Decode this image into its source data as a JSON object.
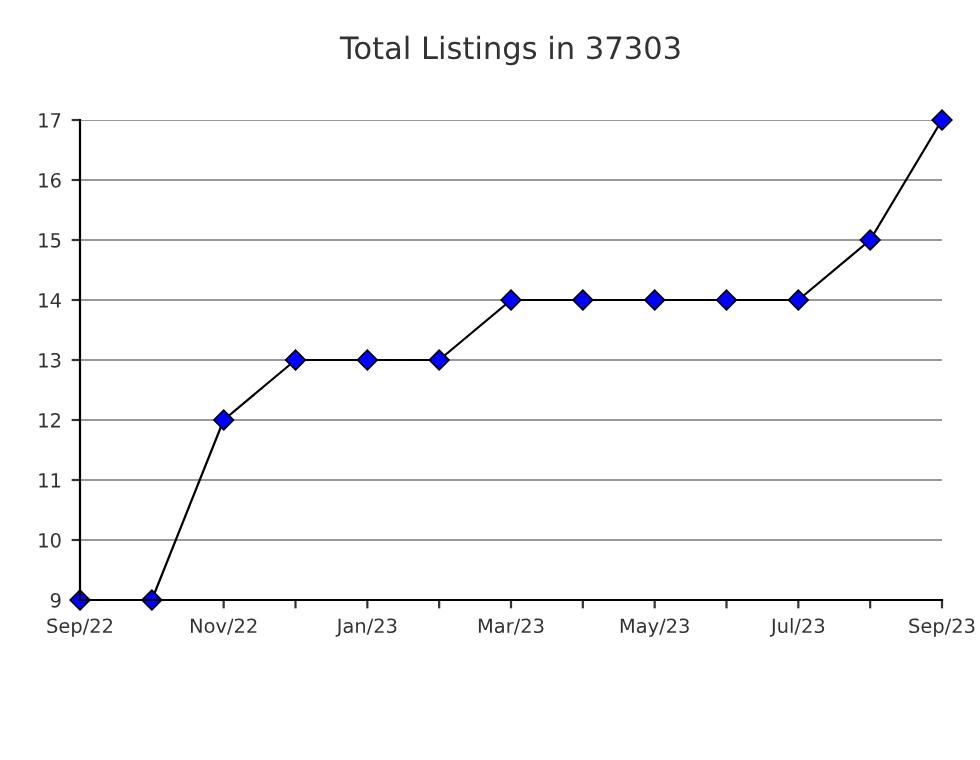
{
  "chart_data": {
    "type": "line",
    "title": "Total Listings in 37303",
    "categories": [
      "Sep/22",
      null,
      "Nov/22",
      null,
      "Jan/23",
      null,
      "Mar/23",
      null,
      "May/23",
      null,
      "Jul/23",
      null,
      "Sep/23"
    ],
    "series": [
      {
        "color": "#0000ff",
        "values": [
          9,
          9,
          12,
          13,
          13,
          13,
          14,
          14,
          14,
          14,
          14,
          15,
          17
        ]
      }
    ],
    "ylim": [
      9,
      17
    ],
    "yticks": [
      9,
      10,
      11,
      12,
      13,
      14,
      15,
      16,
      17
    ],
    "grid": "y",
    "marker": "diamond",
    "line_style": "solid",
    "legend": false
  }
}
